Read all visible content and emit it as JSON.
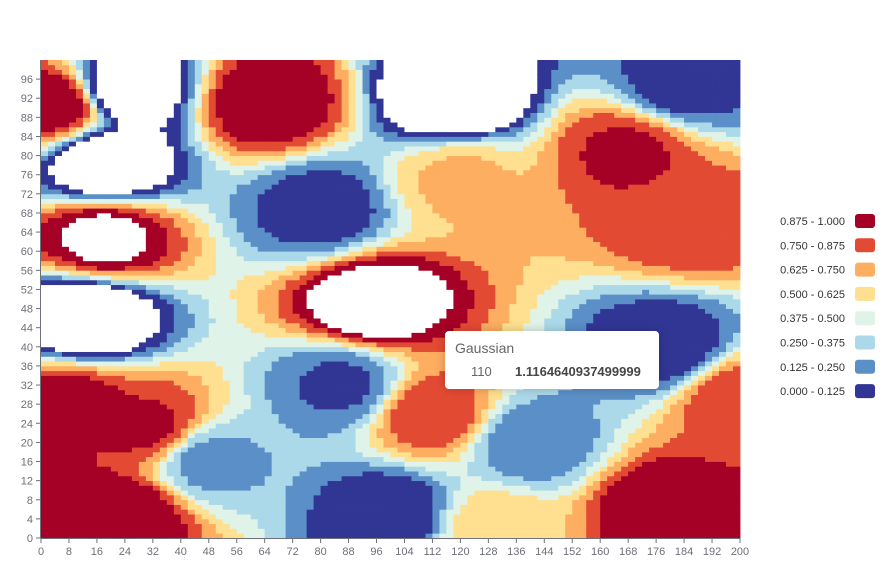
{
  "chart_data": {
    "type": "heatmap",
    "title": "",
    "xlabel": "",
    "ylabel": "",
    "x_axis": {
      "min": 0,
      "max": 200,
      "ticks": [
        0,
        8,
        16,
        24,
        32,
        40,
        48,
        56,
        64,
        72,
        80,
        88,
        96,
        104,
        112,
        120,
        128,
        136,
        144,
        152,
        160,
        168,
        176,
        184,
        192,
        200
      ]
    },
    "y_axis": {
      "min": 0,
      "max": 99,
      "ticks": [
        0,
        4,
        8,
        12,
        16,
        20,
        24,
        28,
        32,
        36,
        40,
        44,
        48,
        52,
        56,
        60,
        64,
        68,
        72,
        76,
        80,
        84,
        88,
        92,
        96
      ]
    },
    "grid_resolution": {
      "x_step": 2,
      "y_step": 1
    },
    "pieces": [
      {
        "label": "0.875 - 1.000",
        "min": 0.875,
        "max": 1.0,
        "color": "#a50026"
      },
      {
        "label": "0.750 - 0.875",
        "min": 0.75,
        "max": 0.875,
        "color": "#e34a33"
      },
      {
        "label": "0.625 - 0.750",
        "min": 0.625,
        "max": 0.75,
        "color": "#fdae61"
      },
      {
        "label": "0.500 - 0.625",
        "min": 0.5,
        "max": 0.625,
        "color": "#fee090"
      },
      {
        "label": "0.375 - 0.500",
        "min": 0.375,
        "max": 0.5,
        "color": "#e0f3e8"
      },
      {
        "label": "0.250 - 0.375",
        "min": 0.25,
        "max": 0.375,
        "color": "#abd9e9"
      },
      {
        "label": "0.125 - 0.250",
        "min": 0.125,
        "max": 0.25,
        "color": "#5b8fc7"
      },
      {
        "label": "0.000 - 0.125",
        "min": 0.0,
        "max": 0.125,
        "color": "#313695"
      }
    ],
    "out_of_range_color": "#ffffff",
    "legend_position": "right",
    "field_peaks": [
      {
        "x": 4,
        "y": 91,
        "value": 1.0
      },
      {
        "x": 24,
        "y": 94,
        "value": -0.2
      },
      {
        "x": 19,
        "y": 78,
        "value": -0.2
      },
      {
        "x": 65,
        "y": 91,
        "value": 1.0
      },
      {
        "x": 118,
        "y": 92,
        "value": -0.25
      },
      {
        "x": 184,
        "y": 95,
        "value": 0.05
      },
      {
        "x": 168,
        "y": 81,
        "value": 0.9
      },
      {
        "x": 18,
        "y": 63,
        "value": 1.05
      },
      {
        "x": 80,
        "y": 69,
        "value": 0.05
      },
      {
        "x": 120,
        "y": 75,
        "value": 0.65
      },
      {
        "x": 185,
        "y": 66,
        "value": 0.85
      },
      {
        "x": 95,
        "y": 49,
        "value": 1.15
      },
      {
        "x": 13,
        "y": 46,
        "value": -0.25
      },
      {
        "x": 178,
        "y": 40,
        "value": 0.0
      },
      {
        "x": 8,
        "y": 28,
        "value": 0.95
      },
      {
        "x": 30,
        "y": 23,
        "value": 0.9
      },
      {
        "x": 86,
        "y": 32,
        "value": 0.1
      },
      {
        "x": 112,
        "y": 26,
        "value": 0.85
      },
      {
        "x": 200,
        "y": 29,
        "value": 0.85
      },
      {
        "x": 48,
        "y": 16,
        "value": 0.2
      },
      {
        "x": 140,
        "y": 20,
        "value": 0.15
      },
      {
        "x": 24,
        "y": 5,
        "value": 1.0
      },
      {
        "x": 100,
        "y": 5,
        "value": 0.0
      },
      {
        "x": 178,
        "y": 6,
        "value": 1.0
      },
      {
        "x": 130,
        "y": 2,
        "value": 0.6
      }
    ]
  },
  "tooltip": {
    "title": "Gaussian",
    "x_value": "110",
    "value": "1.1164640937499999"
  }
}
